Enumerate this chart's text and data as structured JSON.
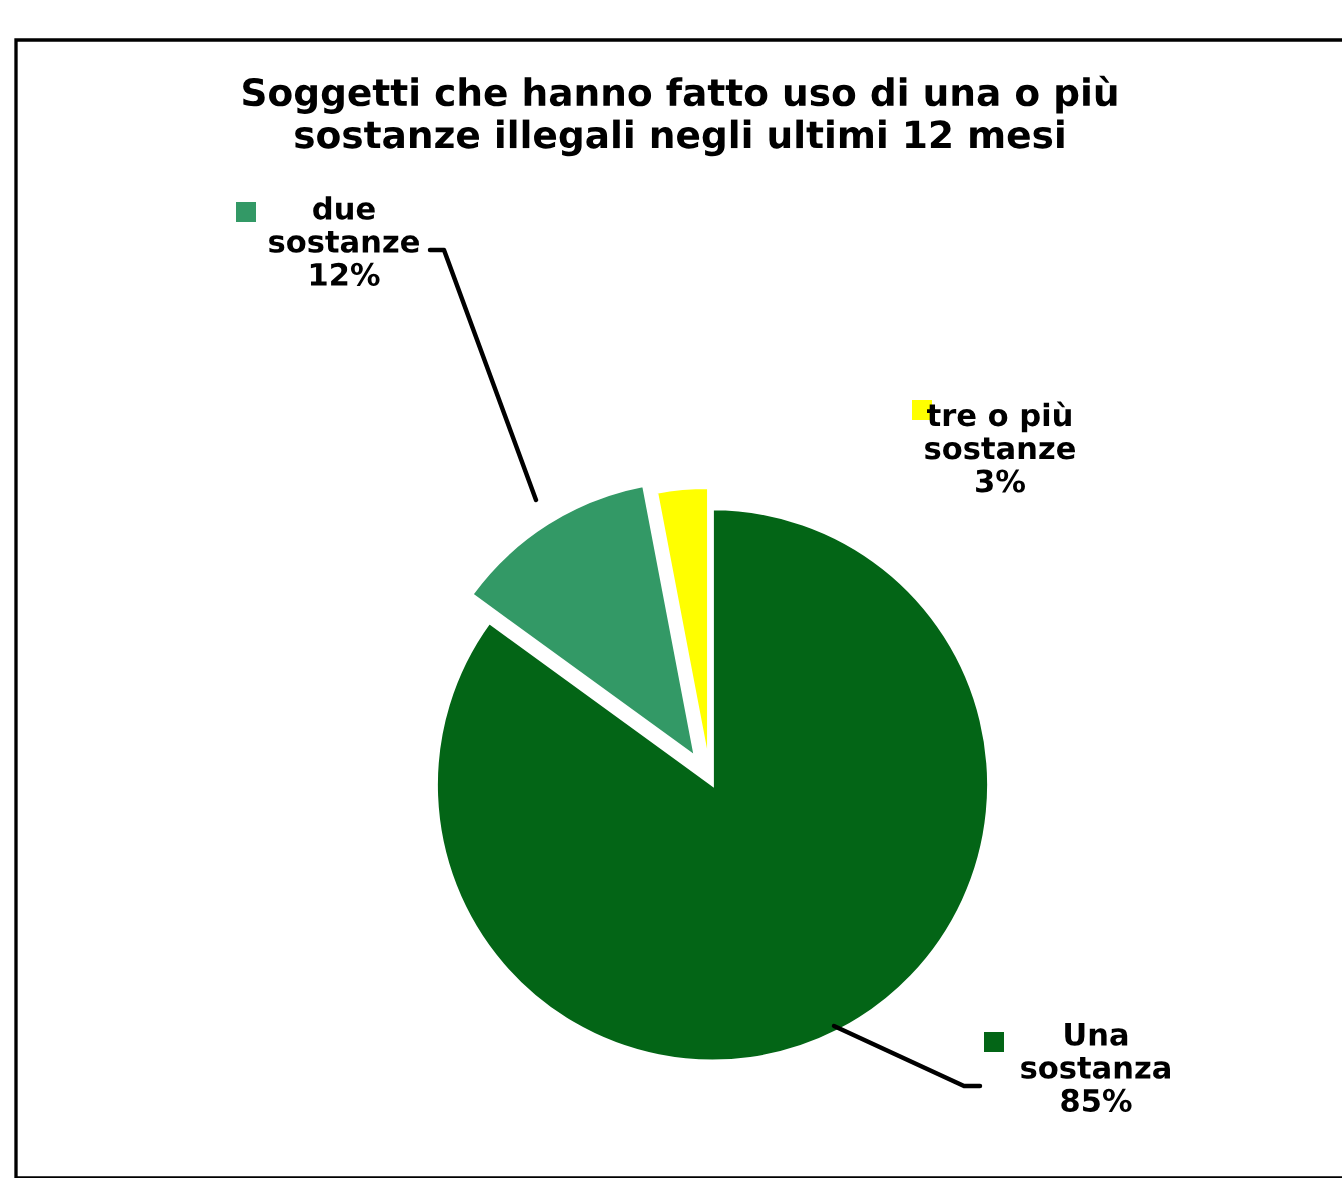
{
  "chart_data": {
    "type": "pie",
    "title": "Soggetti che hanno fatto uso di una o più\nsostanze illegali negli ultimi 12 mesi",
    "categories": [
      "Una sostanza",
      "due sostanze",
      "tre o più sostanze"
    ],
    "values": [
      85,
      12,
      3
    ],
    "colors": [
      "#036516",
      "#339966",
      "#ffff00"
    ],
    "value_labels": [
      "85%",
      "12%",
      "3%"
    ],
    "legend": "top left"
  }
}
